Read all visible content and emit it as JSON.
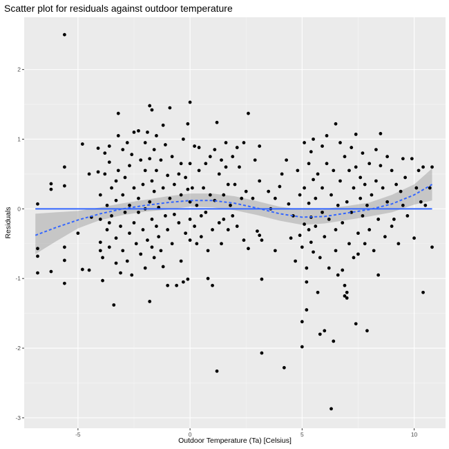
{
  "chart_data": {
    "type": "scatter",
    "title": "Scatter plot for residuals against outdoor temperature",
    "xlabel": "Outdoor Temperature (Ta) [Celsius]",
    "ylabel": "Residuals",
    "xlim": [
      -7.4,
      11.4
    ],
    "ylim": [
      -3.15,
      2.75
    ],
    "x_ticks": [
      -5,
      0,
      5,
      10
    ],
    "x_tick_labels": [
      "-5",
      "0",
      "5",
      "10"
    ],
    "y_ticks": [
      -3,
      -2,
      -1,
      0,
      1,
      2
    ],
    "y_tick_labels": [
      "-3",
      "-2",
      "-1",
      "0",
      "1",
      "2"
    ],
    "grid": true,
    "colors": {
      "panel": "#ebebeb",
      "grid_major": "#ffffff",
      "points": "#000000",
      "fit": "#3366ff",
      "ribbon": "#999999"
    },
    "fit_lines": [
      {
        "style": "solid",
        "x": [
          -6.9,
          10.8
        ],
        "y": [
          0.0,
          0.0
        ]
      },
      {
        "style": "dashed",
        "x": [
          -6.9,
          -6,
          -5,
          -4,
          -3,
          -2,
          -1,
          0,
          1,
          2,
          3,
          4,
          5,
          6,
          7,
          8,
          9,
          10,
          10.8
        ],
        "y": [
          -0.38,
          -0.27,
          -0.16,
          -0.07,
          0.0,
          0.05,
          0.09,
          0.12,
          0.12,
          0.08,
          0.01,
          -0.07,
          -0.12,
          -0.11,
          -0.06,
          -0.01,
          0.07,
          0.2,
          0.35
        ]
      }
    ],
    "confidence_band": {
      "x": [
        -6.9,
        -6,
        -5,
        -4,
        -3,
        -2,
        -1,
        0,
        1,
        2,
        3,
        4,
        5,
        6,
        7,
        8,
        9,
        10,
        10.8
      ],
      "lower": [
        -0.65,
        -0.47,
        -0.28,
        -0.16,
        -0.09,
        -0.04,
        -0.01,
        0.03,
        0.02,
        -0.02,
        -0.09,
        -0.17,
        -0.23,
        -0.21,
        -0.16,
        -0.11,
        -0.05,
        0.06,
        0.12
      ],
      "upper": [
        -0.07,
        -0.05,
        -0.03,
        0.02,
        0.08,
        0.13,
        0.18,
        0.22,
        0.22,
        0.18,
        0.11,
        0.03,
        -0.01,
        0.0,
        0.04,
        0.09,
        0.2,
        0.35,
        0.58
      ]
    },
    "points": [
      [
        -6.8,
        0.07
      ],
      [
        -6.8,
        -0.57
      ],
      [
        -6.8,
        -0.68
      ],
      [
        -6.8,
        -0.92
      ],
      [
        -6.2,
        0.36
      ],
      [
        -6.2,
        0.28
      ],
      [
        -6.2,
        -0.9
      ],
      [
        -5.6,
        2.5
      ],
      [
        -5.6,
        0.6
      ],
      [
        -5.6,
        0.33
      ],
      [
        -5.6,
        -0.55
      ],
      [
        -5.6,
        -0.74
      ],
      [
        -5.6,
        -1.07
      ],
      [
        -5.0,
        -0.35
      ],
      [
        -4.8,
        0.93
      ],
      [
        -4.8,
        -0.87
      ],
      [
        -4.5,
        0.5
      ],
      [
        -4.5,
        -0.88
      ],
      [
        -4.4,
        -0.12
      ],
      [
        -4.1,
        0.87
      ],
      [
        -4.1,
        0.53
      ],
      [
        -4.0,
        0.2
      ],
      [
        -4.0,
        -0.15
      ],
      [
        -4.0,
        -0.48
      ],
      [
        -4.0,
        -0.6
      ],
      [
        -3.9,
        -0.7
      ],
      [
        -3.9,
        -1.03
      ],
      [
        -3.8,
        0.8
      ],
      [
        -3.8,
        0.5
      ],
      [
        -3.7,
        0.05
      ],
      [
        -3.7,
        -0.3
      ],
      [
        -3.6,
        0.9
      ],
      [
        -3.6,
        0.67
      ],
      [
        -3.6,
        -0.2
      ],
      [
        -3.6,
        -0.55
      ],
      [
        -3.5,
        0.3
      ],
      [
        -3.5,
        -0.1
      ],
      [
        -3.4,
        -1.38
      ],
      [
        -3.3,
        0.4
      ],
      [
        -3.3,
        0.12
      ],
      [
        -3.3,
        -0.42
      ],
      [
        -3.3,
        -0.78
      ],
      [
        -3.2,
        1.37
      ],
      [
        -3.2,
        1.05
      ],
      [
        -3.2,
        0.55
      ],
      [
        -3.1,
        -0.25
      ],
      [
        -3.1,
        -0.92
      ],
      [
        -3.0,
        0.85
      ],
      [
        -3.0,
        0.2
      ],
      [
        -3.0,
        -0.6
      ],
      [
        -2.9,
        0.45
      ],
      [
        -2.9,
        -0.05
      ],
      [
        -2.8,
        0.95
      ],
      [
        -2.8,
        -0.75
      ],
      [
        -2.7,
        0.62
      ],
      [
        -2.7,
        0.05
      ],
      [
        -2.7,
        -0.35
      ],
      [
        -2.6,
        0.78
      ],
      [
        -2.6,
        -0.95
      ],
      [
        -2.5,
        1.1
      ],
      [
        -2.5,
        0.3
      ],
      [
        -2.5,
        -0.2
      ],
      [
        -2.4,
        -0.5
      ],
      [
        -2.3,
        1.12
      ],
      [
        -2.3,
        0.15
      ],
      [
        -2.3,
        -0.05
      ],
      [
        -2.2,
        0.7
      ],
      [
        -2.2,
        -0.65
      ],
      [
        -2.1,
        0.35
      ],
      [
        -2.1,
        -0.3
      ],
      [
        -2.0,
        0.95
      ],
      [
        -2.0,
        0.55
      ],
      [
        -2.0,
        0.0
      ],
      [
        -2.0,
        -0.85
      ],
      [
        -1.9,
        1.1
      ],
      [
        -1.9,
        -0.45
      ],
      [
        -1.8,
        1.48
      ],
      [
        -1.8,
        0.72
      ],
      [
        -1.8,
        0.1
      ],
      [
        -1.8,
        -1.33
      ],
      [
        -1.7,
        1.42
      ],
      [
        -1.7,
        0.4
      ],
      [
        -1.7,
        -0.15
      ],
      [
        -1.7,
        -0.55
      ],
      [
        -1.6,
        0.85
      ],
      [
        -1.6,
        0.25
      ],
      [
        -1.6,
        -0.7
      ],
      [
        -1.5,
        1.05
      ],
      [
        -1.5,
        0.55
      ],
      [
        -1.5,
        -0.25
      ],
      [
        -1.4,
        0.02
      ],
      [
        -1.4,
        -0.4
      ],
      [
        -1.3,
        0.7
      ],
      [
        -1.3,
        -0.6
      ],
      [
        -1.2,
        1.2
      ],
      [
        -1.2,
        0.3
      ],
      [
        -1.2,
        -0.83
      ],
      [
        -1.1,
        0.92
      ],
      [
        -1.1,
        -0.1
      ],
      [
        -1.0,
        0.48
      ],
      [
        -1.0,
        -0.3
      ],
      [
        -1.0,
        -1.1
      ],
      [
        -0.9,
        1.45
      ],
      [
        -0.9,
        0.15
      ],
      [
        -0.8,
        0.75
      ],
      [
        -0.8,
        -0.5
      ],
      [
        -0.7,
        0.35
      ],
      [
        -0.7,
        -0.08
      ],
      [
        -0.6,
        -1.1
      ],
      [
        -0.5,
        0.5
      ],
      [
        -0.5,
        -0.2
      ],
      [
        -0.4,
        0.65
      ],
      [
        -0.4,
        0.2
      ],
      [
        -0.4,
        -0.75
      ],
      [
        -0.3,
        1.0
      ],
      [
        -0.3,
        -1.05
      ],
      [
        -0.2,
        0.45
      ],
      [
        -0.2,
        -0.35
      ],
      [
        -0.1,
        1.22
      ],
      [
        -0.1,
        0.28
      ],
      [
        -0.1,
        -1.01
      ],
      [
        0.0,
        1.53
      ],
      [
        0.0,
        0.65
      ],
      [
        0.0,
        0.1
      ],
      [
        0.0,
        -0.15
      ],
      [
        0.0,
        -0.45
      ],
      [
        0.1,
        0.3
      ],
      [
        0.2,
        0.9
      ],
      [
        0.2,
        -0.25
      ],
      [
        0.3,
        0.05
      ],
      [
        0.3,
        -0.5
      ],
      [
        0.4,
        0.88
      ],
      [
        0.4,
        0.55
      ],
      [
        0.5,
        -0.1
      ],
      [
        0.5,
        -0.4
      ],
      [
        0.6,
        0.3
      ],
      [
        0.7,
        0.65
      ],
      [
        0.7,
        -0.05
      ],
      [
        0.8,
        -0.6
      ],
      [
        0.8,
        -1.0
      ],
      [
        0.9,
        0.75
      ],
      [
        0.9,
        0.2
      ],
      [
        1.0,
        -0.3
      ],
      [
        1.0,
        -1.1
      ],
      [
        1.1,
        0.85
      ],
      [
        1.1,
        0.12
      ],
      [
        1.2,
        1.24
      ],
      [
        1.2,
        -2.33
      ],
      [
        1.3,
        0.5
      ],
      [
        1.3,
        -0.2
      ],
      [
        1.4,
        0.7
      ],
      [
        1.4,
        -0.5
      ],
      [
        1.5,
        0.2
      ],
      [
        1.5,
        -0.15
      ],
      [
        1.6,
        0.95
      ],
      [
        1.6,
        0.6
      ],
      [
        1.7,
        -0.3
      ],
      [
        1.7,
        0.35
      ],
      [
        1.8,
        0.05
      ],
      [
        1.9,
        0.75
      ],
      [
        1.9,
        -0.1
      ],
      [
        2.0,
        0.35
      ],
      [
        2.1,
        0.88
      ],
      [
        2.1,
        -0.25
      ],
      [
        2.2,
        0.6
      ],
      [
        2.3,
        0.15
      ],
      [
        2.4,
        0.95
      ],
      [
        2.4,
        -0.45
      ],
      [
        2.5,
        0.25
      ],
      [
        2.6,
        1.37
      ],
      [
        2.6,
        -0.57
      ],
      [
        2.8,
        0.15
      ],
      [
        2.9,
        0.7
      ],
      [
        3.0,
        -0.32
      ],
      [
        3.1,
        0.9
      ],
      [
        3.1,
        0.4
      ],
      [
        3.1,
        -0.38
      ],
      [
        3.2,
        -0.45
      ],
      [
        3.2,
        -1.01
      ],
      [
        3.2,
        -2.07
      ],
      [
        3.5,
        0.25
      ],
      [
        3.6,
        0.0
      ],
      [
        3.8,
        0.15
      ],
      [
        3.8,
        -0.6
      ],
      [
        4.0,
        0.32
      ],
      [
        4.1,
        0.5
      ],
      [
        4.2,
        -2.28
      ],
      [
        4.3,
        0.7
      ],
      [
        4.4,
        0.07
      ],
      [
        4.5,
        -0.42
      ],
      [
        4.6,
        -0.1
      ],
      [
        4.7,
        -0.75
      ],
      [
        4.8,
        0.55
      ],
      [
        4.9,
        0.2
      ],
      [
        4.9,
        -0.38
      ],
      [
        5.0,
        -1.62
      ],
      [
        5.0,
        -1.98
      ],
      [
        5.0,
        -0.55
      ],
      [
        5.1,
        0.95
      ],
      [
        5.1,
        0.3
      ],
      [
        5.1,
        -0.22
      ],
      [
        5.2,
        -1.45
      ],
      [
        5.2,
        -0.85
      ],
      [
        5.2,
        -1.05
      ],
      [
        5.3,
        0.65
      ],
      [
        5.3,
        0.08
      ],
      [
        5.3,
        -0.3
      ],
      [
        5.4,
        0.82
      ],
      [
        5.4,
        -0.12
      ],
      [
        5.4,
        -0.48
      ],
      [
        5.5,
        0.42
      ],
      [
        5.5,
        1.0
      ],
      [
        5.5,
        -0.62
      ],
      [
        5.6,
        0.15
      ],
      [
        5.6,
        -0.25
      ],
      [
        5.7,
        0.5
      ],
      [
        5.7,
        -1.2
      ],
      [
        5.8,
        -0.7
      ],
      [
        5.8,
        -1.8
      ],
      [
        5.9,
        0.9
      ],
      [
        5.9,
        0.3
      ],
      [
        5.9,
        -0.05
      ],
      [
        6.0,
        -0.4
      ],
      [
        6.0,
        -1.75
      ],
      [
        6.1,
        1.05
      ],
      [
        6.1,
        0.65
      ],
      [
        6.2,
        -0.15
      ],
      [
        6.2,
        -0.85
      ],
      [
        6.3,
        -2.87
      ],
      [
        6.3,
        0.2
      ],
      [
        6.4,
        -1.9
      ],
      [
        6.4,
        0.55
      ],
      [
        6.5,
        1.22
      ],
      [
        6.5,
        -0.3
      ],
      [
        6.5,
        -0.6
      ],
      [
        6.6,
        0.05
      ],
      [
        6.6,
        -0.95
      ],
      [
        6.7,
        0.95
      ],
      [
        6.7,
        0.4
      ],
      [
        6.8,
        -0.2
      ],
      [
        6.8,
        -0.88
      ],
      [
        6.9,
        -1.1
      ],
      [
        6.9,
        -1.25
      ],
      [
        6.9,
        0.75
      ],
      [
        7.0,
        0.1
      ],
      [
        7.0,
        -1.28
      ],
      [
        7.0,
        -1.2
      ],
      [
        7.1,
        0.55
      ],
      [
        7.1,
        -0.5
      ],
      [
        7.2,
        0.88
      ],
      [
        7.2,
        -0.05
      ],
      [
        7.3,
        0.3
      ],
      [
        7.3,
        -0.7
      ],
      [
        7.4,
        1.07
      ],
      [
        7.4,
        -1.65
      ],
      [
        7.4,
        0.6
      ],
      [
        7.5,
        -0.35
      ],
      [
        7.5,
        -0.65
      ],
      [
        7.6,
        0.15
      ],
      [
        7.6,
        0.45
      ],
      [
        7.7,
        0.8
      ],
      [
        7.7,
        -0.1
      ],
      [
        7.8,
        0.35
      ],
      [
        7.8,
        -0.5
      ],
      [
        7.9,
        -1.75
      ],
      [
        7.9,
        0.05
      ],
      [
        8.0,
        0.65
      ],
      [
        8.0,
        -0.3
      ],
      [
        8.1,
        0.2
      ],
      [
        8.2,
        -0.6
      ],
      [
        8.3,
        0.85
      ],
      [
        8.3,
        0.4
      ],
      [
        8.4,
        -0.95
      ],
      [
        8.4,
        -0.15
      ],
      [
        8.5,
        0.62
      ],
      [
        8.5,
        1.08
      ],
      [
        8.6,
        0.3
      ],
      [
        8.7,
        -0.4
      ],
      [
        8.8,
        0.75
      ],
      [
        8.8,
        0.1
      ],
      [
        9.0,
        0.55
      ],
      [
        9.0,
        -0.25
      ],
      [
        9.1,
        -0.15
      ],
      [
        9.2,
        0.35
      ],
      [
        9.3,
        -0.5
      ],
      [
        9.4,
        0.25
      ],
      [
        9.5,
        0.72
      ],
      [
        9.5,
        0.05
      ],
      [
        9.6,
        0.45
      ],
      [
        9.7,
        -0.1
      ],
      [
        9.9,
        0.72
      ],
      [
        10.0,
        -0.42
      ],
      [
        10.1,
        0.3
      ],
      [
        10.2,
        0.55
      ],
      [
        10.3,
        0.1
      ],
      [
        10.4,
        -1.2
      ],
      [
        10.4,
        0.6
      ],
      [
        10.5,
        0.05
      ],
      [
        10.7,
        0.3
      ],
      [
        10.8,
        0.6
      ],
      [
        10.8,
        -0.55
      ]
    ]
  }
}
